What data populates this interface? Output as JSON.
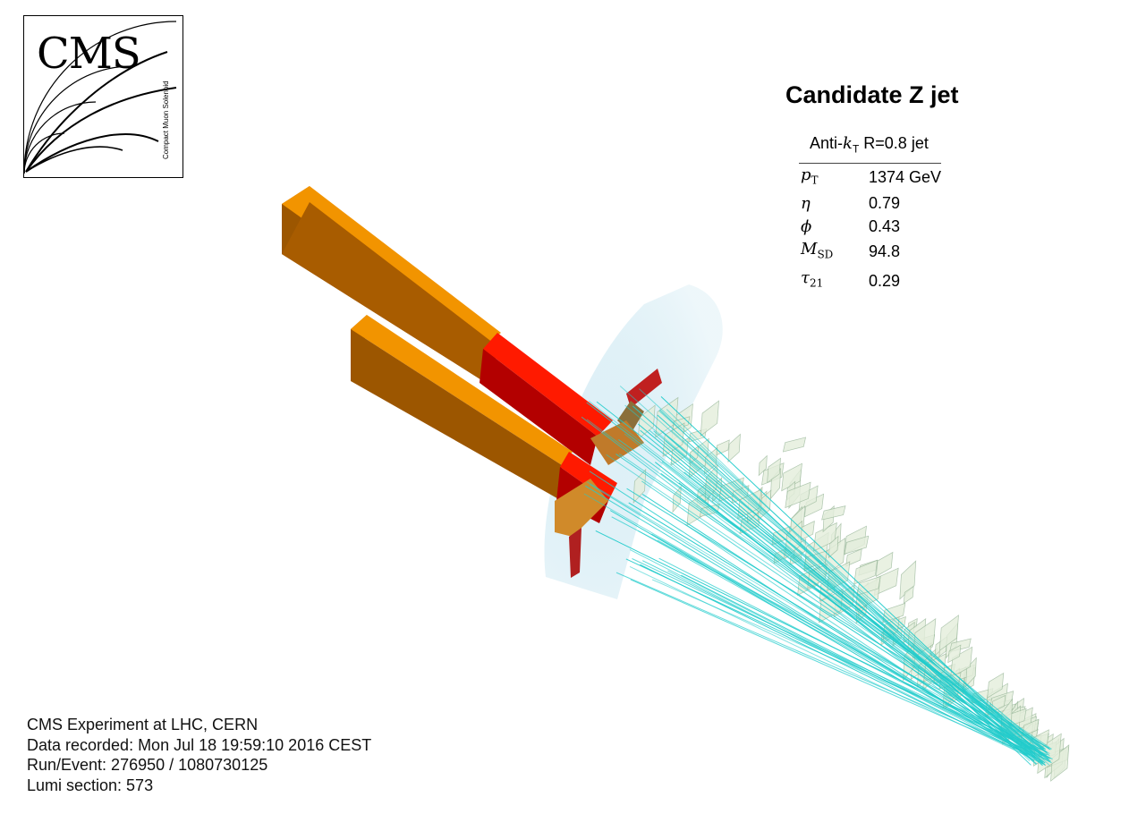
{
  "logo": {
    "text": "CMS",
    "subtitle": "Compact Muon Solenoid"
  },
  "title": "Candidate Z jet",
  "jet_table": {
    "header_prefix": "Anti-",
    "header_k": "k",
    "header_sub": "T",
    "header_suffix": " R=0.8 jet",
    "rows": [
      {
        "symbol": "p",
        "sub": "T",
        "value": "1374 GeV"
      },
      {
        "symbol": "η",
        "sub": "",
        "value": "0.79"
      },
      {
        "symbol": "ϕ",
        "sub": "",
        "value": "0.43"
      },
      {
        "symbol": "M",
        "sub": "SD",
        "value": "94.8"
      },
      {
        "symbol": "τ",
        "sub": "21",
        "value": "0.29"
      }
    ]
  },
  "footer": {
    "experiment": "CMS Experiment at LHC, CERN",
    "recorded": "Data recorded: Mon Jul 18 19:59:10 2016 CEST",
    "run_event": "Run/Event: 276950 / 1080730125",
    "lumi": "Lumi section: 573"
  },
  "colors": {
    "hcal": "#f08c00",
    "ecal": "#ff1a00",
    "tracks": "#22cccc",
    "muon": "#9ab89a",
    "halo": "#7fc4dd"
  }
}
